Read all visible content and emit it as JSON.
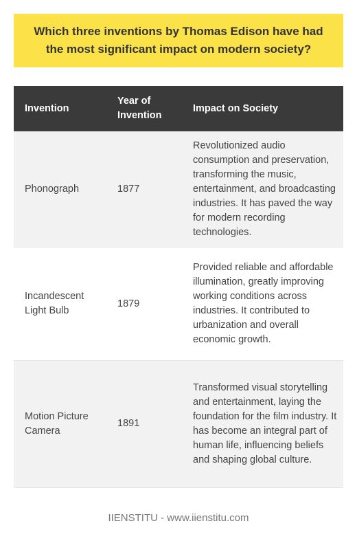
{
  "question": "Which three inventions by Thomas Edison have had the most significant impact on modern society?",
  "table": {
    "headers": [
      "Invention",
      "Year of Invention",
      "Impact on Society"
    ],
    "rows": [
      {
        "invention": "Phonograph",
        "year": "1877",
        "impact": "Revolutionized audio consumption and preservation, transforming the music, entertainment, and broadcasting industries. It has paved the way for modern recording technologies."
      },
      {
        "invention": "Incandescent Light Bulb",
        "year": "1879",
        "impact": "Provided reliable and affordable illumination, greatly improving working conditions across industries. It contributed to urbanization and overall economic growth."
      },
      {
        "invention": "Motion Picture Camera",
        "year": "1891",
        "impact": "Transformed visual storytelling and entertainment, laying the foundation for the film industry. It has become an integral part of human life, influencing beliefs and shaping global culture."
      }
    ]
  },
  "footer": "IIENSTITU - www.iienstitu.com"
}
